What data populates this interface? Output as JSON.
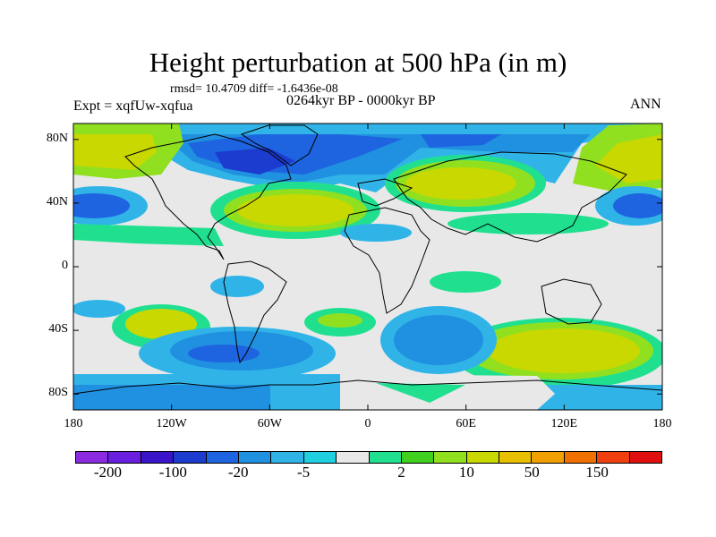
{
  "title": "Height perturbation at 500 hPa (in m)",
  "stats": "rmsd= 10.4709 diff= -1.6436e-08",
  "experiment": "Expt = xqfUw-xqfua",
  "period": "0264kyr BP - 0000kyr BP",
  "season": "ANN",
  "lat_ticks": [
    "80N",
    "40N",
    "0",
    "40S",
    "80S"
  ],
  "lat_values": [
    80,
    40,
    0,
    -40,
    -80
  ],
  "lon_ticks": [
    "180",
    "120W",
    "60W",
    "0",
    "60E",
    "120E",
    "180"
  ],
  "lon_values": [
    -180,
    -120,
    -60,
    0,
    60,
    120,
    180
  ],
  "colorbar": {
    "colors": [
      "#8a2be2",
      "#6a1ee0",
      "#3a14c8",
      "#1c3cd0",
      "#1e64e0",
      "#2090e0",
      "#30b4e8",
      "#20d0e0",
      "#e8e8e8",
      "#20e090",
      "#40d020",
      "#90e020",
      "#c8d800",
      "#e8c000",
      "#f0a000",
      "#f07000",
      "#f04010",
      "#e01010"
    ],
    "labels": [
      "-200",
      "-100",
      "-20",
      "-5",
      "2",
      "10",
      "50",
      "150"
    ]
  },
  "field_colors": {
    "neutral": "#e8e8e8",
    "neg_weak": "#20d0e0",
    "neg_mid": "#2090e0",
    "neg_strong": "#1e64e0",
    "neg_max": "#1c3cd0",
    "pos_weak": "#20e090",
    "pos_mid": "#40d020",
    "pos_strong": "#90e020",
    "pos_max": "#c8d800"
  }
}
